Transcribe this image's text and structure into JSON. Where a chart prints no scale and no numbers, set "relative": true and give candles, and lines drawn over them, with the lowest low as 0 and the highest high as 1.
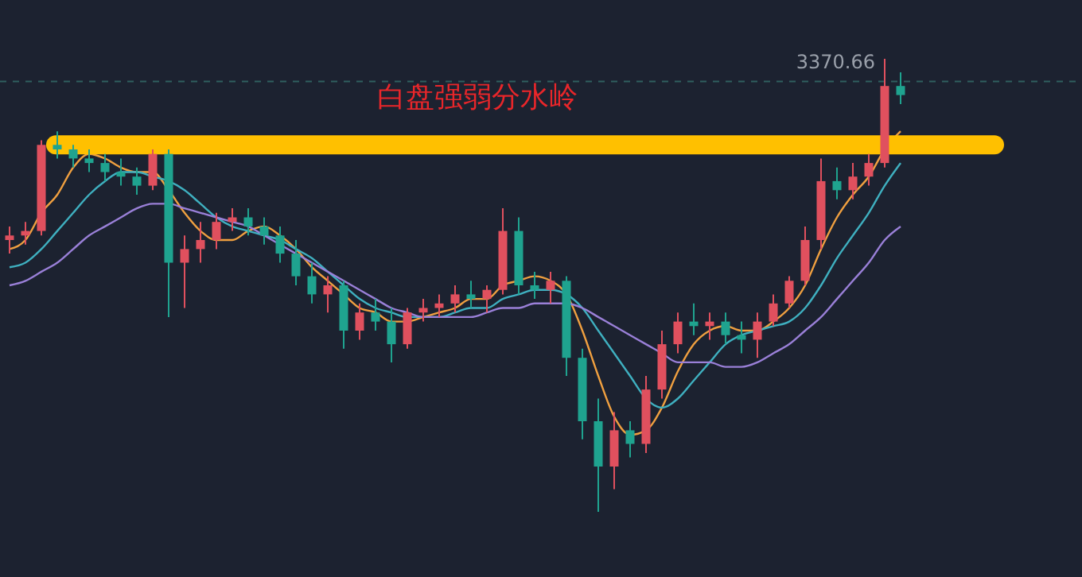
{
  "chart_data": {
    "type": "candlestick",
    "relative": true,
    "categories": [
      null,
      null,
      null,
      null,
      null,
      null,
      null,
      null,
      null,
      null,
      null,
      null,
      null,
      null,
      null,
      null,
      null,
      null,
      null,
      null,
      null,
      null,
      null,
      null,
      null,
      null,
      null,
      null,
      null,
      null,
      null,
      null,
      null,
      null,
      null,
      null,
      null,
      null,
      null,
      null,
      null,
      null,
      null,
      null,
      null,
      null,
      null,
      null,
      null,
      null,
      null,
      null,
      null,
      null,
      null,
      null,
      null
    ],
    "ohlc": [
      [
        0.6,
        0.63,
        0.57,
        0.61
      ],
      [
        0.61,
        0.64,
        0.59,
        0.62
      ],
      [
        0.62,
        0.82,
        0.61,
        0.81
      ],
      [
        0.81,
        0.84,
        0.78,
        0.8
      ],
      [
        0.8,
        0.81,
        0.76,
        0.78
      ],
      [
        0.78,
        0.8,
        0.75,
        0.77
      ],
      [
        0.77,
        0.79,
        0.73,
        0.75
      ],
      [
        0.75,
        0.78,
        0.72,
        0.74
      ],
      [
        0.74,
        0.76,
        0.7,
        0.72
      ],
      [
        0.72,
        0.8,
        0.71,
        0.79
      ],
      [
        0.79,
        0.8,
        0.43,
        0.55
      ],
      [
        0.55,
        0.61,
        0.45,
        0.58
      ],
      [
        0.58,
        0.64,
        0.55,
        0.6
      ],
      [
        0.6,
        0.66,
        0.58,
        0.64
      ],
      [
        0.64,
        0.67,
        0.62,
        0.65
      ],
      [
        0.65,
        0.67,
        0.61,
        0.63
      ],
      [
        0.63,
        0.65,
        0.59,
        0.61
      ],
      [
        0.61,
        0.63,
        0.55,
        0.57
      ],
      [
        0.57,
        0.6,
        0.5,
        0.52
      ],
      [
        0.52,
        0.55,
        0.46,
        0.48
      ],
      [
        0.48,
        0.52,
        0.44,
        0.5
      ],
      [
        0.5,
        0.51,
        0.36,
        0.4
      ],
      [
        0.4,
        0.46,
        0.38,
        0.44
      ],
      [
        0.44,
        0.47,
        0.4,
        0.42
      ],
      [
        0.42,
        0.45,
        0.33,
        0.37
      ],
      [
        0.37,
        0.45,
        0.36,
        0.44
      ],
      [
        0.44,
        0.47,
        0.42,
        0.45
      ],
      [
        0.45,
        0.48,
        0.43,
        0.46
      ],
      [
        0.46,
        0.5,
        0.44,
        0.48
      ],
      [
        0.48,
        0.51,
        0.45,
        0.47
      ],
      [
        0.47,
        0.5,
        0.44,
        0.49
      ],
      [
        0.49,
        0.67,
        0.48,
        0.62
      ],
      [
        0.62,
        0.65,
        0.48,
        0.5
      ],
      [
        0.5,
        0.53,
        0.47,
        0.49
      ],
      [
        0.49,
        0.53,
        0.46,
        0.51
      ],
      [
        0.51,
        0.52,
        0.3,
        0.34
      ],
      [
        0.34,
        0.36,
        0.16,
        0.2
      ],
      [
        0.2,
        0.25,
        0.0,
        0.1
      ],
      [
        0.1,
        0.22,
        0.05,
        0.18
      ],
      [
        0.18,
        0.2,
        0.12,
        0.15
      ],
      [
        0.15,
        0.3,
        0.13,
        0.27
      ],
      [
        0.27,
        0.4,
        0.25,
        0.37
      ],
      [
        0.37,
        0.44,
        0.35,
        0.42
      ],
      [
        0.42,
        0.46,
        0.39,
        0.41
      ],
      [
        0.41,
        0.44,
        0.38,
        0.42
      ],
      [
        0.42,
        0.44,
        0.37,
        0.39
      ],
      [
        0.39,
        0.42,
        0.35,
        0.38
      ],
      [
        0.38,
        0.44,
        0.34,
        0.42
      ],
      [
        0.42,
        0.48,
        0.41,
        0.46
      ],
      [
        0.46,
        0.52,
        0.45,
        0.51
      ],
      [
        0.51,
        0.63,
        0.5,
        0.6
      ],
      [
        0.6,
        0.78,
        0.58,
        0.73
      ],
      [
        0.73,
        0.76,
        0.69,
        0.71
      ],
      [
        0.71,
        0.77,
        0.69,
        0.74
      ],
      [
        0.74,
        0.79,
        0.72,
        0.77
      ],
      [
        0.77,
        1.0,
        0.76,
        0.94
      ],
      [
        0.94,
        0.97,
        0.9,
        0.92
      ]
    ],
    "colors": [
      "#e0505e",
      "#e0505e",
      "#e0505e",
      "#1fa38f",
      "#1fa38f",
      "#1fa38f",
      "#1fa38f",
      "#1fa38f",
      "#1fa38f",
      "#e0505e",
      "#1fa38f",
      "#e0505e",
      "#e0505e",
      "#e0505e",
      "#e0505e",
      "#1fa38f",
      "#1fa38f",
      "#1fa38f",
      "#1fa38f",
      "#1fa38f",
      "#e0505e",
      "#1fa38f",
      "#e0505e",
      "#1fa38f",
      "#1fa38f",
      "#e0505e",
      "#e0505e",
      "#e0505e",
      "#e0505e",
      "#1fa38f",
      "#e0505e",
      "#e0505e",
      "#1fa38f",
      "#1fa38f",
      "#e0505e",
      "#1fa38f",
      "#1fa38f",
      "#1fa38f",
      "#e0505e",
      "#1fa38f",
      "#e0505e",
      "#e0505e",
      "#e0505e",
      "#1fa38f",
      "#e0505e",
      "#1fa38f",
      "#1fa38f",
      "#e0505e",
      "#e0505e",
      "#e0505e",
      "#e0505e",
      "#e0505e",
      "#1fa38f",
      "#e0505e",
      "#e0505e",
      "#e0505e",
      "#1fa38f"
    ],
    "series": [
      {
        "type": "line",
        "color": "#f0a040",
        "values": [
          0.58,
          0.6,
          0.66,
          0.7,
          0.76,
          0.79,
          0.78,
          0.76,
          0.75,
          0.75,
          0.71,
          0.66,
          0.62,
          0.6,
          0.6,
          0.62,
          0.63,
          0.61,
          0.58,
          0.54,
          0.51,
          0.48,
          0.45,
          0.44,
          0.42,
          0.42,
          0.43,
          0.44,
          0.45,
          0.47,
          0.47,
          0.5,
          0.51,
          0.52,
          0.51,
          0.48,
          0.4,
          0.3,
          0.21,
          0.17,
          0.18,
          0.23,
          0.31,
          0.37,
          0.4,
          0.41,
          0.4,
          0.4,
          0.42,
          0.45,
          0.5,
          0.58,
          0.65,
          0.7,
          0.74,
          0.8,
          0.84
        ]
      },
      {
        "type": "line",
        "color": "#3fb0c0",
        "values": [
          0.54,
          0.55,
          0.58,
          0.62,
          0.66,
          0.7,
          0.73,
          0.75,
          0.75,
          0.74,
          0.73,
          0.71,
          0.68,
          0.65,
          0.63,
          0.62,
          0.61,
          0.6,
          0.58,
          0.56,
          0.53,
          0.5,
          0.47,
          0.45,
          0.44,
          0.43,
          0.43,
          0.43,
          0.44,
          0.45,
          0.45,
          0.47,
          0.48,
          0.49,
          0.49,
          0.48,
          0.45,
          0.4,
          0.35,
          0.3,
          0.25,
          0.23,
          0.25,
          0.29,
          0.33,
          0.37,
          0.39,
          0.4,
          0.41,
          0.42,
          0.45,
          0.5,
          0.56,
          0.61,
          0.66,
          0.72,
          0.77
        ]
      },
      {
        "type": "line",
        "color": "#9a80d8",
        "values": [
          0.5,
          0.51,
          0.53,
          0.55,
          0.58,
          0.61,
          0.63,
          0.65,
          0.67,
          0.68,
          0.68,
          0.67,
          0.66,
          0.65,
          0.64,
          0.63,
          0.61,
          0.59,
          0.57,
          0.55,
          0.53,
          0.51,
          0.49,
          0.47,
          0.45,
          0.44,
          0.43,
          0.43,
          0.43,
          0.43,
          0.44,
          0.45,
          0.45,
          0.46,
          0.46,
          0.46,
          0.45,
          0.43,
          0.41,
          0.39,
          0.37,
          0.35,
          0.33,
          0.33,
          0.33,
          0.32,
          0.32,
          0.33,
          0.35,
          0.37,
          0.4,
          0.43,
          0.47,
          0.51,
          0.55,
          0.6,
          0.63
        ]
      }
    ],
    "ref_lines": [
      {
        "axis": "y",
        "value": 0.81,
        "label": "白盘强弱分水岭",
        "color": "#ffc000"
      },
      {
        "axis": "y",
        "value": 0.95,
        "color": "#2f5f5f",
        "line_style": "dashed"
      }
    ],
    "annotations": [
      "3370.66"
    ]
  }
}
